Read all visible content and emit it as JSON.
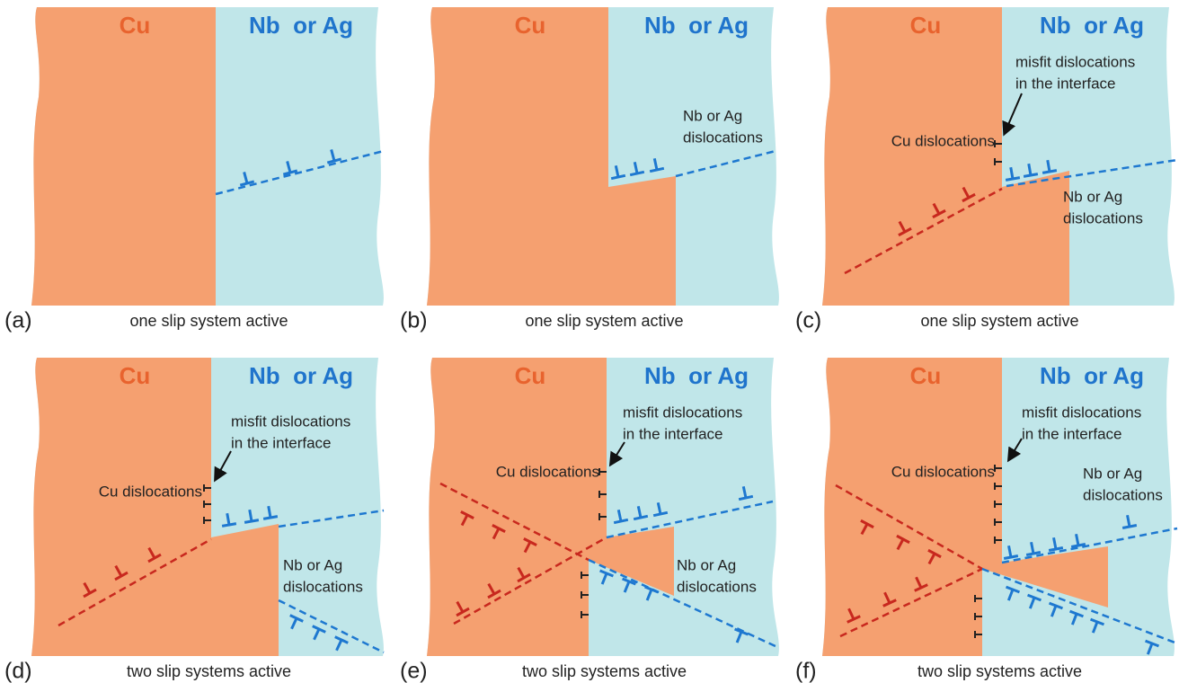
{
  "panels": [
    {
      "label": "(a)",
      "caption": "one slip system active",
      "left_material": "Cu",
      "right_material": "Nb  or Ag"
    },
    {
      "label": "(b)",
      "caption": "one slip system active",
      "left_material": "Cu",
      "right_material": "Nb  or Ag",
      "nb_dislocations": [
        "Nb or Ag",
        "dislocations"
      ]
    },
    {
      "label": "(c)",
      "caption": "one slip system active",
      "left_material": "Cu",
      "right_material": "Nb  or Ag",
      "misfit_dislocations": [
        "misfit dislocations",
        "in the interface"
      ],
      "cu_dislocations": "Cu dislocations",
      "nb_dislocations": [
        "Nb or Ag",
        "dislocations"
      ]
    },
    {
      "label": "(d)",
      "caption": "two slip systems active",
      "left_material": "Cu",
      "right_material": "Nb  or Ag",
      "misfit_dislocations": [
        "misfit dislocations",
        "in the interface"
      ],
      "cu_dislocations": "Cu dislocations",
      "nb_dislocations": [
        "Nb or Ag",
        "dislocations"
      ]
    },
    {
      "label": "(e)",
      "caption": "two slip systems active",
      "left_material": "Cu",
      "right_material": "Nb  or Ag",
      "misfit_dislocations": [
        "misfit dislocations",
        "in the interface"
      ],
      "cu_dislocations": "Cu dislocations",
      "nb_dislocations": [
        "Nb or Ag",
        "dislocations"
      ]
    },
    {
      "label": "(f)",
      "caption": "two slip systems active",
      "left_material": "Cu",
      "right_material": "Nb  or Ag",
      "misfit_dislocations": [
        "misfit dislocations",
        "in the interface"
      ],
      "cu_dislocations": "Cu dislocations",
      "nb_dislocations": [
        "Nb or Ag",
        "dislocations"
      ]
    }
  ]
}
